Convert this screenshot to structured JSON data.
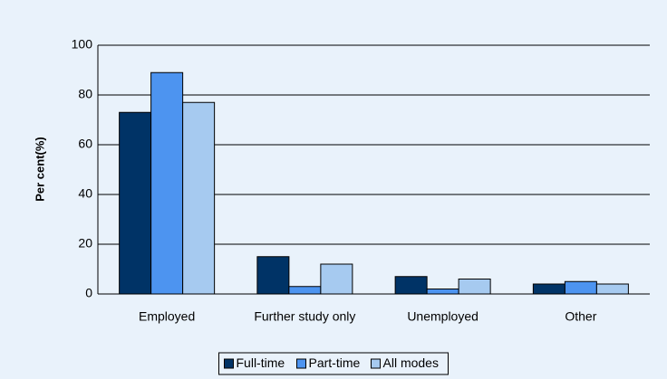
{
  "chart_data": {
    "type": "bar",
    "categories": [
      "Employed",
      "Further study only",
      "Unemployed",
      "Other"
    ],
    "series": [
      {
        "name": "Full-time",
        "color": "#003366",
        "values": [
          73,
          15,
          7,
          4
        ]
      },
      {
        "name": "Part-time",
        "color": "#4d94f0",
        "values": [
          89,
          3,
          2,
          5
        ]
      },
      {
        "name": "All modes",
        "color": "#a6caf0",
        "values": [
          77,
          12,
          6,
          4
        ]
      }
    ],
    "ylabel": "Per cent(%)",
    "ylim": [
      0,
      100
    ],
    "yticks": [
      0,
      20,
      40,
      60,
      80,
      100
    ],
    "grid": true,
    "legend": "bottom"
  }
}
